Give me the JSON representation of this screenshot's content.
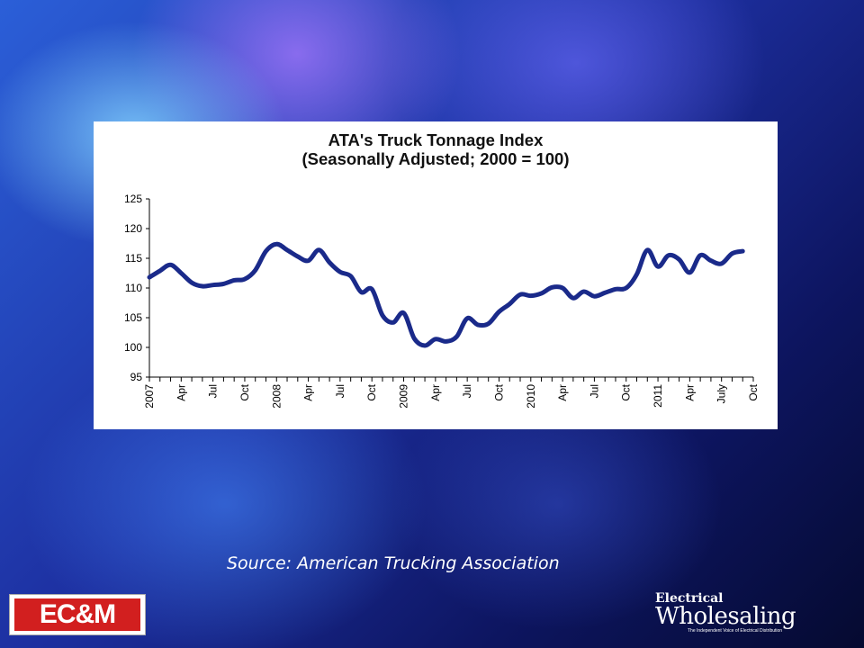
{
  "chart_data": {
    "type": "line",
    "title": [
      "ATA's Truck Tonnage Index",
      "(Seasonally Adjusted; 2000 = 100)"
    ],
    "xlabel": "",
    "ylabel": "",
    "ylim": [
      95,
      125
    ],
    "yticks": [
      95,
      100,
      105,
      110,
      115,
      120,
      125
    ],
    "grid": false,
    "legend": "none",
    "x_tick_labels": [
      "2007",
      "Apr",
      "Jul",
      "Oct",
      "2008",
      "Apr",
      "Jul",
      "Oct",
      "2009",
      "Apr",
      "Jul",
      "Oct",
      "2010",
      "Apr",
      "Jul",
      "Oct",
      "2011",
      "Apr",
      "July",
      "Oct"
    ],
    "series": [
      {
        "color": "#1a2a8a",
        "values": [
          111.8,
          112.9,
          113.9,
          112.5,
          110.9,
          110.3,
          110.5,
          110.7,
          111.3,
          111.5,
          113.0,
          116.2,
          117.4,
          116.4,
          115.3,
          114.6,
          116.4,
          114.3,
          112.7,
          112.0,
          109.3,
          109.8,
          105.4,
          104.2,
          105.8,
          101.5,
          100.3,
          101.4,
          101.0,
          101.8,
          104.9,
          103.8,
          104.0,
          106.0,
          107.3,
          108.9,
          108.7,
          109.1,
          110.1,
          110.0,
          108.3,
          109.4,
          108.6,
          109.2,
          109.8,
          110.0,
          112.3,
          116.4,
          113.6,
          115.5,
          114.8,
          112.6,
          115.5,
          114.6,
          114.1,
          115.8,
          116.2
        ]
      }
    ]
  },
  "source_text": "Source: American Trucking Association",
  "logos": {
    "ecm": "EC&M",
    "ew_line1": "Electrical",
    "ew_line2": "Wholesaling",
    "ew_line3": "The Independent Voice of Electrical Distribution"
  },
  "colors": {
    "line": "#1a2a8a",
    "ecm_red": "#d21f1f"
  }
}
